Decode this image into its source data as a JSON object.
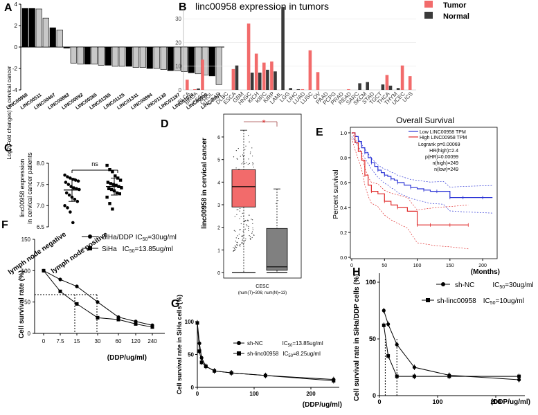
{
  "panel_letters": [
    "A",
    "B",
    "C",
    "D",
    "E",
    "F",
    "G",
    "H"
  ],
  "chart_data": [
    {
      "panel": "A",
      "type": "bar",
      "ylabel": "Log2(Fold changes) in cervical cancer",
      "ylim": [
        -4,
        4
      ],
      "yticks": [
        "-4",
        "-2",
        "0",
        "2",
        "4"
      ],
      "bars": [
        {
          "label": "LINC00958",
          "value": 3.6,
          "fill": "black"
        },
        {
          "label": "",
          "value": 3.6,
          "fill": "black"
        },
        {
          "label": "LINC00511",
          "value": 3.55,
          "fill": "gray"
        },
        {
          "label": "",
          "value": 2.7,
          "fill": "gray"
        },
        {
          "label": "LINC00467",
          "value": 1.8,
          "fill": "black"
        },
        {
          "label": "",
          "value": 1.6,
          "fill": "gray"
        },
        {
          "label": "LINC00883",
          "value": -0.1,
          "fill": "black"
        },
        {
          "label": "",
          "value": -1.5,
          "fill": "gray"
        },
        {
          "label": "LINC00092",
          "value": -1.6,
          "fill": "gray"
        },
        {
          "label": "",
          "value": -1.6,
          "fill": "black"
        },
        {
          "label": "LINC00265",
          "value": -1.6,
          "fill": "gray"
        },
        {
          "label": "",
          "value": -1.7,
          "fill": "gray"
        },
        {
          "label": "LINC01355",
          "value": -1.7,
          "fill": "black"
        },
        {
          "label": "",
          "value": -1.8,
          "fill": "gray"
        },
        {
          "label": "LINC01125",
          "value": -1.8,
          "fill": "gray"
        },
        {
          "label": "",
          "value": -1.8,
          "fill": "black"
        },
        {
          "label": "LINC01341",
          "value": -1.9,
          "fill": "gray"
        },
        {
          "label": "",
          "value": -1.9,
          "fill": "gray"
        },
        {
          "label": "LINC00894",
          "value": -2.0,
          "fill": "black"
        },
        {
          "label": "",
          "value": -2.0,
          "fill": "gray"
        },
        {
          "label": "LINC01139",
          "value": -2.1,
          "fill": "gray"
        },
        {
          "label": "",
          "value": -2.2,
          "fill": "black"
        },
        {
          "label": "LINC01197",
          "value": -2.2,
          "fill": "gray"
        },
        {
          "label": "",
          "value": -2.3,
          "fill": "gray"
        },
        {
          "label": "LINC01016",
          "value": -2.4,
          "fill": "black"
        },
        {
          "label": "",
          "value": -2.5,
          "fill": "gray"
        },
        {
          "label": "LINC00908",
          "value": -2.6,
          "fill": "gray"
        },
        {
          "label": "",
          "value": -2.7,
          "fill": "black"
        },
        {
          "label": "LINC-PINT",
          "value": -3.5,
          "fill": "gray"
        }
      ]
    },
    {
      "panel": "B",
      "type": "bar",
      "title": "linc00958 expression in tumors",
      "ylim": [
        0,
        35
      ],
      "yticks": [
        "0",
        "10",
        "20",
        "30"
      ],
      "series": [
        {
          "name": "Tumor",
          "color": "#f26b6b"
        },
        {
          "name": "Normal",
          "color": "#3a3a3a"
        }
      ],
      "categories": [
        "BLCA",
        "BRCA",
        "CESC",
        "CHOL",
        "COAD",
        "DLBC",
        "ESCA",
        "GBM",
        "HNSC",
        "KICH",
        "KIRC",
        "KIRP",
        "LAML",
        "LGG",
        "LIHC",
        "LUAD",
        "LUSC",
        "OV",
        "PAAD",
        "PCPG",
        "PRAD",
        "READ",
        "SARC",
        "SKCM",
        "STAD",
        "TGCT",
        "THCA",
        "THYM",
        "UCEC",
        "UCS"
      ],
      "tumor": [
        4.3,
        0.3,
        12.8,
        0,
        0,
        0,
        8.8,
        0,
        28,
        15.3,
        11.5,
        12,
        0,
        0,
        0,
        0.3,
        16.7,
        7.5,
        0,
        0,
        0,
        0.3,
        0,
        0,
        0,
        0,
        6.3,
        0,
        10.3,
        5.8
      ],
      "normal": [
        0,
        0.6,
        0,
        0,
        0,
        0,
        10.3,
        0,
        7.3,
        7.3,
        8.5,
        7.8,
        35,
        0.8,
        0.3,
        0,
        0,
        0,
        0,
        0,
        0,
        0,
        2.8,
        3.3,
        0,
        2.3,
        1.8,
        0.8,
        0,
        0
      ]
    },
    {
      "panel": "C",
      "type": "scatter",
      "ylabel": "linc00958 expression in cervical cancer patients",
      "ylim": [
        6.5,
        8.0
      ],
      "yticks": [
        "6.5",
        "7.0",
        "7.5",
        "8.0"
      ],
      "groups": [
        "lymph node negative",
        "lymph node positive"
      ],
      "significance": "ns",
      "negative": [
        7.72,
        7.68,
        7.65,
        7.62,
        7.6,
        7.58,
        7.55,
        7.5,
        7.45,
        7.42,
        7.4,
        7.38,
        7.3,
        7.25,
        7.2,
        7.15,
        7.1,
        7.0,
        6.95,
        6.85,
        6.6
      ],
      "positive": [
        7.95,
        7.85,
        7.8,
        7.7,
        7.65,
        7.6,
        7.55,
        7.52,
        7.5,
        7.48,
        7.45,
        7.42,
        7.4,
        7.38,
        7.35,
        7.3,
        7.28,
        7.2,
        7.05,
        6.92
      ],
      "negative_mean": 7.37,
      "negative_sd": 0.27,
      "positive_mean": 7.45,
      "positive_sd": 0.2
    },
    {
      "panel": "D",
      "type": "box",
      "ylabel": "linc00958 in cervical cancer",
      "ylim": [
        0,
        6
      ],
      "yticks": [
        "0",
        "1",
        "2",
        "3",
        "4",
        "5",
        "6"
      ],
      "xlabel": "CESC",
      "note": "(num(T)=306; num(N)=13)",
      "significance": "*",
      "tumor": {
        "min": 0,
        "q1": 2.9,
        "median": 3.8,
        "q3": 4.55,
        "max": 6.3,
        "color": "#f26b6b"
      },
      "normal": {
        "min": 0,
        "q1": 0.1,
        "median": 0.25,
        "q3": 1.95,
        "max": 3.7,
        "color": "#808080"
      }
    },
    {
      "panel": "E",
      "type": "line",
      "title": "Overall Survival",
      "ylabel": "Percent survival",
      "xlabel": "(Months)",
      "xlim": [
        0,
        220
      ],
      "ylim": [
        0,
        1.0
      ],
      "xticks": [
        "0",
        "50",
        "100",
        "150",
        "200"
      ],
      "yticks": [
        "0.0",
        "0.2",
        "0.4",
        "0.6",
        "0.8",
        "1.0"
      ],
      "legend": [
        "Low LINC00958 TPM",
        "High LINC00958 TPM"
      ],
      "stats": [
        "Logrank p=0.00069",
        "HR(high)=2.4",
        "p(HR)=0.00099",
        "n(high)=249",
        "n(low)=249"
      ],
      "low": {
        "color": "#2b34d6",
        "x": [
          0,
          5,
          10,
          15,
          20,
          25,
          30,
          35,
          40,
          45,
          50,
          55,
          60,
          65,
          70,
          80,
          90,
          100,
          110,
          120,
          130,
          140,
          150,
          160,
          170,
          185,
          200,
          215
        ],
        "y": [
          1.0,
          0.97,
          0.93,
          0.88,
          0.84,
          0.8,
          0.76,
          0.73,
          0.7,
          0.68,
          0.66,
          0.65,
          0.63,
          0.62,
          0.6,
          0.58,
          0.56,
          0.55,
          0.54,
          0.53,
          0.53,
          0.53,
          0.48,
          0.48,
          0.48,
          0.48,
          0.48,
          0.48
        ]
      },
      "high": {
        "color": "#e02a2a",
        "x": [
          0,
          5,
          10,
          15,
          20,
          25,
          30,
          40,
          50,
          60,
          70,
          85,
          100,
          110,
          120,
          130,
          150,
          165,
          178
        ],
        "y": [
          1.0,
          0.92,
          0.85,
          0.78,
          0.66,
          0.58,
          0.53,
          0.51,
          0.45,
          0.42,
          0.4,
          0.37,
          0.26,
          0.26,
          0.26,
          0.26,
          0.26,
          0.26,
          0.26
        ]
      }
    },
    {
      "panel": "F",
      "type": "line",
      "ylabel": "Cell survival rate (%)",
      "xlabel": "(DDP/ug/ml)",
      "ylim": [
        0,
        150
      ],
      "yticks": [
        "0",
        "50",
        "100",
        "150"
      ],
      "categories": [
        "0",
        "7.5",
        "15",
        "30",
        "60",
        "120",
        "240"
      ],
      "series": [
        {
          "name": "SiHa/DDP",
          "ic50_label": "IC",
          "ic50_value": "=30ug/ml",
          "values": [
            100,
            86,
            75,
            50,
            26,
            19,
            13
          ]
        },
        {
          "name": "SiHa",
          "ic50_label": "IC",
          "ic50_value": "=13.85ug/ml",
          "values": [
            100,
            67,
            47,
            25,
            22,
            15,
            10
          ]
        }
      ],
      "ic50_sub": "50"
    },
    {
      "panel": "G",
      "type": "line",
      "ylabel": "Cell survival rate in SiHa cells (%)",
      "xlabel": "(DDP/ug/ml)",
      "xlim": [
        0,
        250
      ],
      "ylim": [
        0,
        100
      ],
      "xticks": [
        "0",
        "100",
        "200"
      ],
      "yticks": [
        "0",
        "50",
        "100"
      ],
      "series": [
        {
          "name": "sh-NC",
          "ic50_label": "IC",
          "ic50_value": "=13.85ug/ml",
          "x": [
            0,
            3.75,
            7.5,
            15,
            30,
            60,
            120,
            240
          ],
          "y": [
            98,
            67,
            45,
            32,
            25,
            22,
            18,
            12
          ]
        },
        {
          "name": "sh-linc00958",
          "ic50_label": "IC",
          "ic50_value": "=8.25ug/ml",
          "x": [
            0,
            3.75,
            7.5,
            15,
            30,
            60,
            120,
            240
          ],
          "y": [
            98,
            55,
            38,
            32,
            25,
            22,
            18,
            10
          ]
        }
      ],
      "ic50_sub": "50"
    },
    {
      "panel": "H",
      "type": "line",
      "ylabel": "Cell survival rate in SiHa/DDP cells (%)",
      "xlabel": "(DDP/ug/ml)",
      "xlim": [
        0,
        250
      ],
      "ylim": [
        0,
        100
      ],
      "xticks": [
        "0",
        "100",
        "200"
      ],
      "yticks": [
        "0",
        "50",
        "100"
      ],
      "series": [
        {
          "name": "sh-NC",
          "ic50_label": "IC",
          "ic50_value": "=30ug/ml",
          "x": [
            7.5,
            15,
            30,
            60,
            120,
            240
          ],
          "y": [
            75,
            63,
            45,
            25,
            18,
            14
          ]
        },
        {
          "name": "sh-linc00958",
          "ic50_label": "IC",
          "ic50_value": "=10ug/ml",
          "x": [
            7.5,
            15,
            30,
            60,
            120,
            240
          ],
          "y": [
            62,
            35,
            17,
            17,
            17,
            17
          ]
        }
      ],
      "ic50_sub": "50"
    }
  ]
}
